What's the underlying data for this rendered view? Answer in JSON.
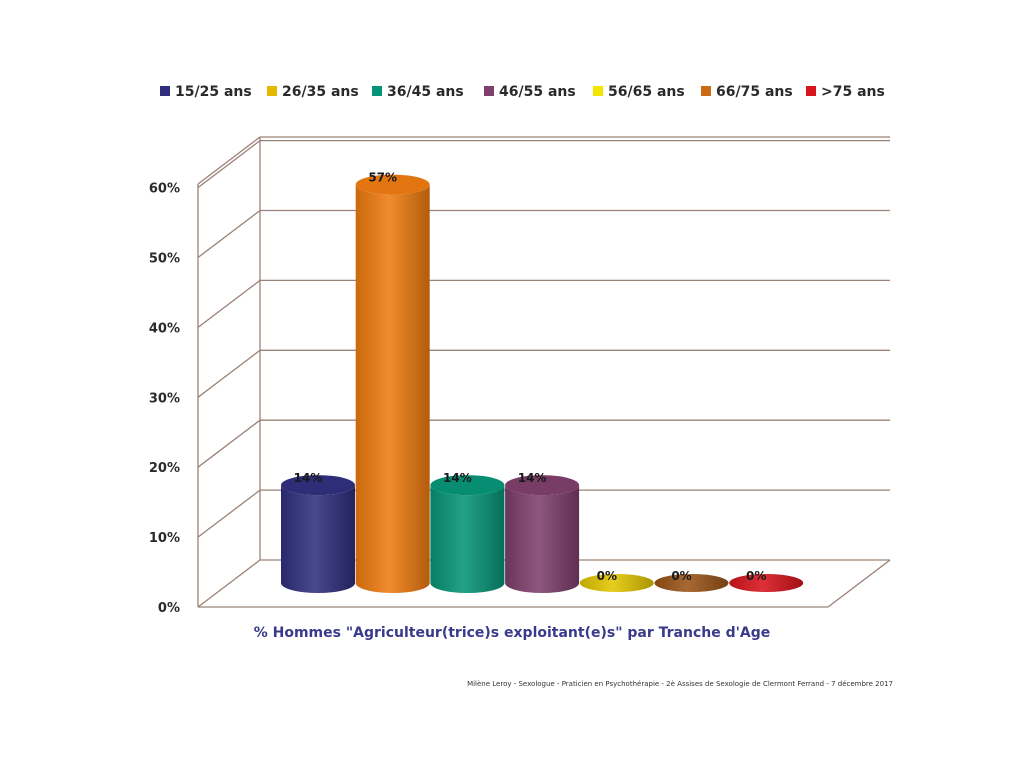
{
  "chart_data": {
    "type": "bar",
    "categories": [
      "15/25 ans",
      "26/35 ans",
      "36/45 ans",
      "46/55 ans",
      "56/65 ans",
      "66/75 ans",
      ">75 ans"
    ],
    "bars": [
      {
        "category": "15/25 ans",
        "value": 14,
        "label": "14%",
        "color": "#2f2f7e"
      },
      {
        "category": "66/75 ans",
        "value": 57,
        "label": "57%",
        "color": "#ee7b10"
      },
      {
        "category": "36/45 ans",
        "value": 14,
        "label": "14%",
        "color": "#069478"
      },
      {
        "category": "46/55 ans",
        "value": 14,
        "label": "14%",
        "color": "#7e3f6c"
      },
      {
        "category": "26/35 ans",
        "value": 0,
        "label": "0%",
        "color": "#e3c600"
      },
      {
        "category": "66/75 ans",
        "value": 0,
        "label": "0%",
        "color": "#9a5418"
      },
      {
        "category": ">75 ans",
        "value": 0,
        "label": "0%",
        "color": "#d8141c"
      }
    ],
    "legend": [
      {
        "name": "15/25 ans",
        "color": "#2f2f7e"
      },
      {
        "name": "26/35 ans",
        "color": "#e8b800"
      },
      {
        "name": "36/45 ans",
        "color": "#069478"
      },
      {
        "name": "46/55 ans",
        "color": "#7e3f6c"
      },
      {
        "name": "56/65 ans",
        "color": "#f2e600"
      },
      {
        "name": "66/75 ans",
        "color": "#cc6a14"
      },
      {
        "name": ">75 ans",
        "color": "#d8141c"
      }
    ],
    "legend_position": "top",
    "yticks": [
      "0%",
      "10%",
      "20%",
      "30%",
      "40%",
      "50%",
      "60%"
    ],
    "ylim": [
      0,
      60
    ],
    "grid": true,
    "xlabel": "% Hommes \"Agriculteur(trice)s exploitant(e)s\" par Tranche d'Age",
    "ylabel": ""
  },
  "footer": "Milène Leroy - Sexologue - Praticien en Psychothérapie - 2è Assises de Sexologie de Clermont Ferrand - 7 décembre 2017"
}
